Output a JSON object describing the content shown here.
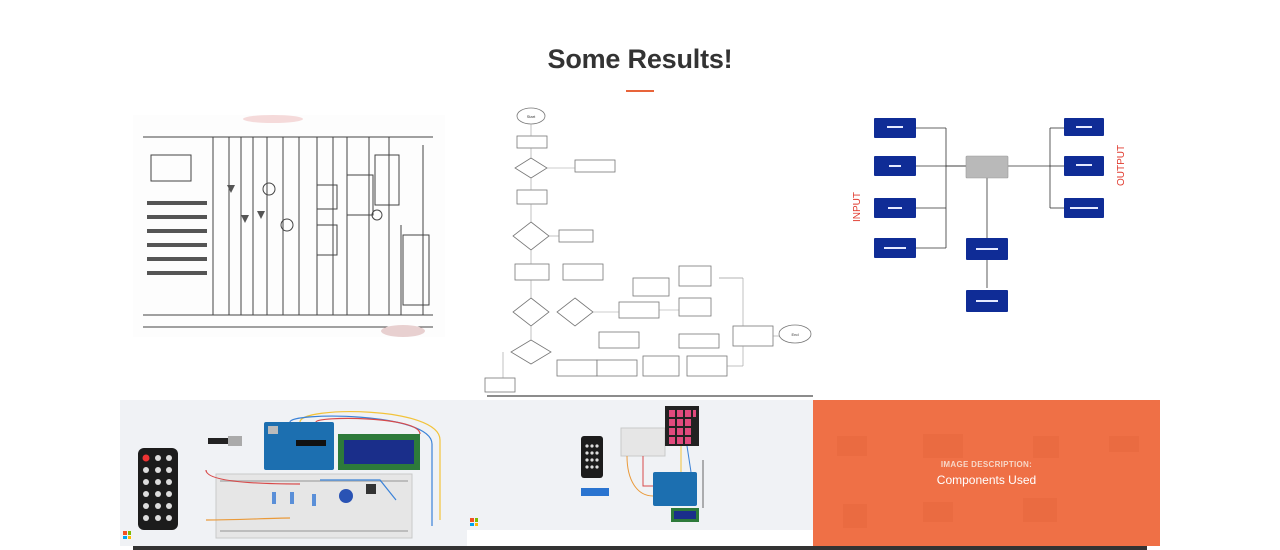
{
  "section": {
    "title": "Some Results!",
    "accent": "#e8643a"
  },
  "gallery": {
    "items": [
      {
        "kind": "hand-drawn-schematic"
      },
      {
        "kind": "flowchart",
        "start": "Start",
        "end": "End"
      },
      {
        "kind": "block-diagram",
        "input_label": "INPUT",
        "output_label": "OUTPUT",
        "accent": "#0f2c96"
      },
      {
        "kind": "circuit-render-lcd"
      },
      {
        "kind": "circuit-render-keypad"
      },
      {
        "kind": "components-overlay",
        "kicker": "IMAGE DESCRIPTION:",
        "caption": "Components Used",
        "overlay_color": "#ee683c"
      }
    ]
  }
}
